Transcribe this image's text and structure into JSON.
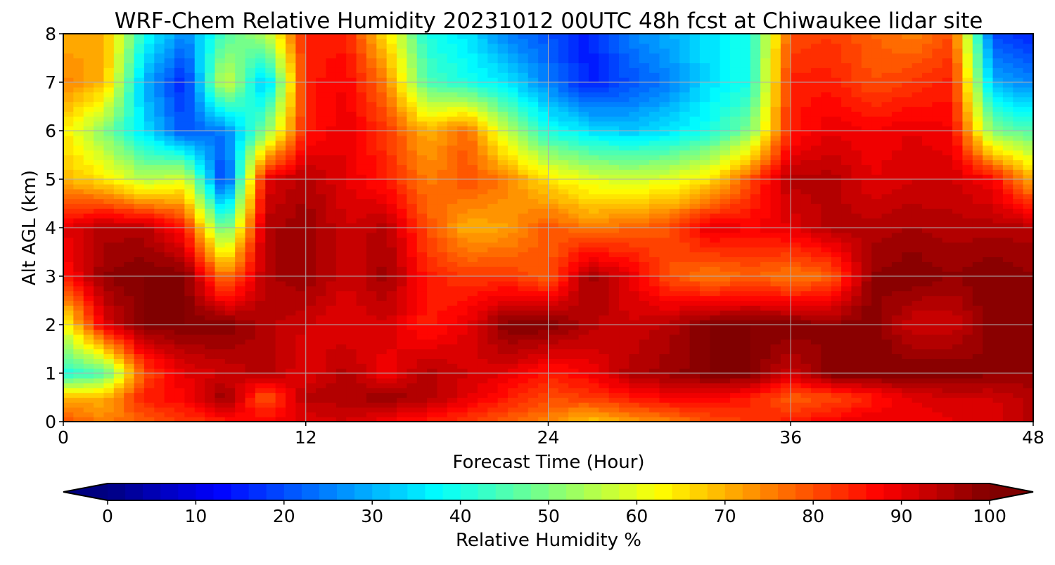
{
  "chart_data": {
    "type": "heatmap",
    "title": "WRF-Chem Relative Humidity 20231012 00UTC 48h fcst at Chiwaukee lidar site",
    "xlabel": "Forecast Time (Hour)",
    "ylabel": "Alt AGL (km)",
    "xlim": [
      0,
      48
    ],
    "ylim": [
      0,
      8
    ],
    "xticks": [
      0,
      12,
      24,
      36,
      48
    ],
    "yticks": [
      0,
      1,
      2,
      3,
      4,
      5,
      6,
      7,
      8
    ],
    "grid": true,
    "colormap": "jet",
    "colorbar": {
      "label": "Relative Humidity %",
      "range": [
        0,
        100
      ],
      "ticks": [
        0,
        10,
        20,
        30,
        40,
        50,
        60,
        70,
        80,
        90,
        100
      ],
      "extend": "both",
      "orientation": "horizontal",
      "placement": "bottom"
    },
    "x": [
      0,
      2,
      4,
      6,
      8,
      10,
      12,
      14,
      16,
      18,
      20,
      22,
      24,
      26,
      28,
      30,
      32,
      34,
      36,
      38,
      40,
      42,
      44,
      46,
      48
    ],
    "y": [
      0,
      0.5,
      1,
      2,
      3,
      4,
      5,
      6,
      7,
      8
    ],
    "z": [
      [
        80,
        75,
        78,
        82,
        85,
        88,
        90,
        92,
        88,
        85,
        82,
        78,
        75,
        68,
        72,
        75,
        80,
        82,
        85,
        88,
        90,
        88,
        90,
        90,
        95
      ],
      [
        70,
        70,
        85,
        88,
        98,
        78,
        95,
        95,
        98,
        95,
        90,
        85,
        80,
        82,
        85,
        88,
        88,
        85,
        78,
        80,
        85,
        90,
        92,
        92,
        95
      ],
      [
        40,
        45,
        80,
        90,
        92,
        95,
        90,
        95,
        88,
        95,
        92,
        90,
        85,
        88,
        95,
        97,
        100,
        100,
        92,
        100,
        100,
        100,
        100,
        98,
        98
      ],
      [
        60,
        90,
        100,
        100,
        100,
        95,
        92,
        90,
        92,
        85,
        90,
        100,
        100,
        95,
        92,
        95,
        100,
        100,
        100,
        98,
        100,
        92,
        92,
        100,
        100
      ],
      [
        85,
        98,
        100,
        100,
        75,
        95,
        98,
        92,
        97,
        85,
        82,
        82,
        78,
        97,
        90,
        80,
        75,
        78,
        75,
        78,
        98,
        100,
        98,
        100,
        98
      ],
      [
        90,
        95,
        95,
        85,
        45,
        95,
        98,
        92,
        95,
        80,
        70,
        72,
        80,
        75,
        78,
        80,
        90,
        88,
        90,
        95,
        95,
        96,
        95,
        95,
        95
      ],
      [
        70,
        65,
        55,
        60,
        15,
        90,
        95,
        90,
        85,
        75,
        80,
        75,
        65,
        60,
        58,
        60,
        65,
        80,
        95,
        95,
        90,
        92,
        92,
        88,
        70
      ],
      [
        65,
        50,
        35,
        20,
        25,
        50,
        85,
        90,
        82,
        70,
        78,
        55,
        40,
        35,
        32,
        35,
        40,
        50,
        85,
        90,
        88,
        90,
        88,
        50,
        45
      ],
      [
        75,
        70,
        30,
        15,
        60,
        30,
        85,
        88,
        75,
        45,
        40,
        35,
        25,
        15,
        20,
        25,
        35,
        40,
        85,
        85,
        80,
        82,
        85,
        30,
        25
      ],
      [
        70,
        72,
        40,
        25,
        45,
        55,
        85,
        85,
        65,
        40,
        35,
        25,
        20,
        15,
        25,
        30,
        35,
        40,
        80,
        82,
        78,
        75,
        80,
        20,
        15
      ]
    ]
  }
}
